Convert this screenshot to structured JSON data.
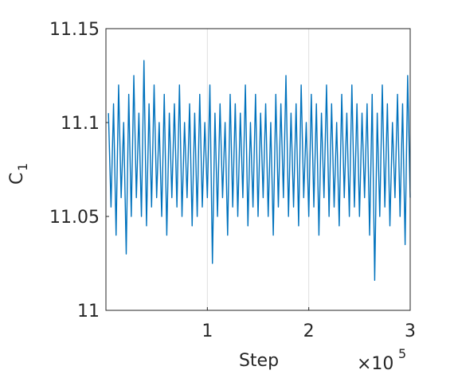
{
  "chart_data": {
    "type": "line",
    "x_label": "Step",
    "x_multiplier": "×10",
    "x_multiplier_exponent": "5",
    "y_label": "C",
    "y_label_subscript": "1",
    "xlim": [
      0,
      300000
    ],
    "xticks": [
      {
        "value": 100000,
        "label": "1"
      },
      {
        "value": 200000,
        "label": "2"
      },
      {
        "value": 300000,
        "label": "3"
      }
    ],
    "ylim": [
      11,
      11.15
    ],
    "yticks": [
      11,
      11.05,
      11.1,
      11.15
    ],
    "grid": "x",
    "series": [
      {
        "color": "#0072bd",
        "x": [
          2500,
          5000,
          7500,
          10000,
          12500,
          15000,
          17500,
          20000,
          22500,
          25000,
          27500,
          30000,
          32500,
          35000,
          37500,
          40000,
          42500,
          45000,
          47500,
          50000,
          52500,
          55000,
          57500,
          60000,
          62500,
          65000,
          67500,
          70000,
          72500,
          75000,
          77500,
          80000,
          82500,
          85000,
          87500,
          90000,
          92500,
          95000,
          97500,
          100000,
          102500,
          105000,
          107500,
          110000,
          112500,
          115000,
          117500,
          120000,
          122500,
          125000,
          127500,
          130000,
          132500,
          135000,
          137500,
          140000,
          142500,
          145000,
          147500,
          150000,
          152500,
          155000,
          157500,
          160000,
          162500,
          165000,
          167500,
          170000,
          172500,
          175000,
          177500,
          180000,
          182500,
          185000,
          187500,
          190000,
          192500,
          195000,
          197500,
          200000,
          202500,
          205000,
          207500,
          210000,
          212500,
          215000,
          217500,
          220000,
          222500,
          225000,
          227500,
          230000,
          232500,
          235000,
          237500,
          240000,
          242500,
          245000,
          247500,
          250000,
          252500,
          255000,
          257500,
          260000,
          262500,
          265000,
          267500,
          270000,
          272500,
          275000,
          277500,
          280000,
          282500,
          285000,
          287500,
          290000,
          292500,
          295000,
          297500,
          300000
        ],
        "values": [
          11.105,
          11.055,
          11.11,
          11.04,
          11.12,
          11.06,
          11.1,
          11.03,
          11.115,
          11.05,
          11.125,
          11.06,
          11.105,
          11.05,
          11.133,
          11.045,
          11.11,
          11.055,
          11.12,
          11.06,
          11.1,
          11.05,
          11.115,
          11.04,
          11.105,
          11.06,
          11.11,
          11.055,
          11.12,
          11.05,
          11.1,
          11.06,
          11.11,
          11.045,
          11.105,
          11.05,
          11.115,
          11.055,
          11.1,
          11.06,
          11.12,
          11.025,
          11.105,
          11.05,
          11.11,
          11.06,
          11.1,
          11.04,
          11.115,
          11.055,
          11.11,
          11.05,
          11.105,
          11.06,
          11.12,
          11.045,
          11.1,
          11.055,
          11.115,
          11.05,
          11.105,
          11.06,
          11.11,
          11.05,
          11.1,
          11.04,
          11.115,
          11.055,
          11.11,
          11.06,
          11.125,
          11.05,
          11.105,
          11.055,
          11.11,
          11.045,
          11.12,
          11.06,
          11.1,
          11.05,
          11.115,
          11.055,
          11.11,
          11.04,
          11.105,
          11.06,
          11.12,
          11.05,
          11.11,
          11.055,
          11.1,
          11.045,
          11.115,
          11.06,
          11.105,
          11.05,
          11.12,
          11.055,
          11.11,
          11.05,
          11.105,
          11.06,
          11.11,
          11.04,
          11.115,
          11.016,
          11.105,
          11.05,
          11.12,
          11.055,
          11.11,
          11.045,
          11.1,
          11.06,
          11.115,
          11.05,
          11.11,
          11.035,
          11.125,
          11.06
        ]
      }
    ]
  }
}
